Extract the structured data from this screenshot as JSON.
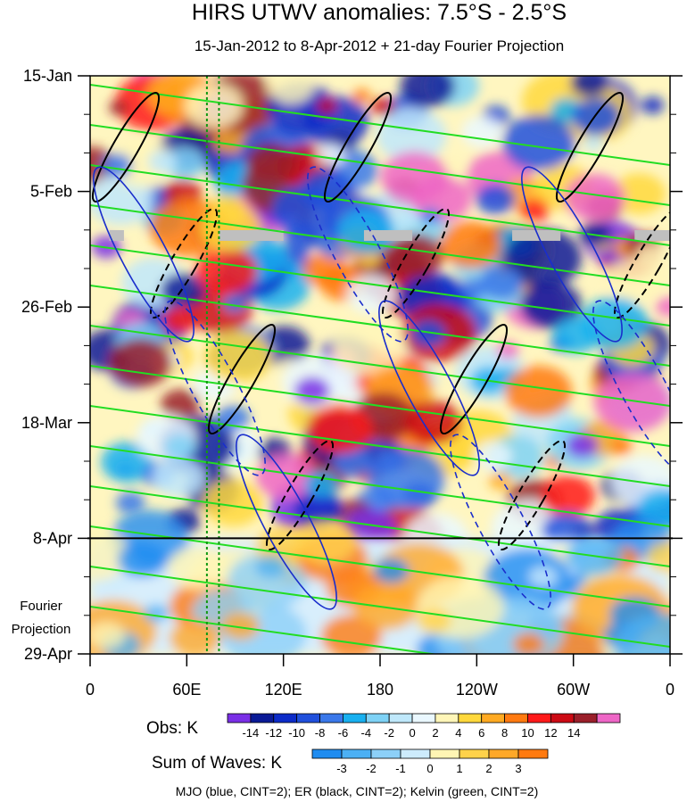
{
  "chart_data": {
    "type": "heatmap",
    "title": "HIRS UTWV anomalies: 7.5°S - 2.5°S",
    "subtitle": "15-Jan-2012 to 8-Apr-2012 + 21-day Fourier Projection",
    "x_ticks": [
      "0",
      "60E",
      "120E",
      "180",
      "120W",
      "60W",
      "0"
    ],
    "x_range_deg": [
      0,
      360
    ],
    "y_ticks": [
      "15-Jan",
      "5-Feb",
      "26-Feb",
      "18-Mar",
      "8-Apr",
      "29-Apr"
    ],
    "y_range_days": [
      0,
      105
    ],
    "observation_end_day": 84,
    "projection_label_line1": "Fourier",
    "projection_label_line2": "Projection",
    "marker_longitudes_deg": [
      72.5,
      80
    ],
    "obs_colorbar": {
      "label": "Obs: K",
      "levels": [
        "-14",
        "-12",
        "-10",
        "-8",
        "-6",
        "-4",
        "-2",
        "0",
        "2",
        "4",
        "6",
        "8",
        "10",
        "12",
        "14"
      ],
      "colors": [
        "#7a2fe6",
        "#0a1a96",
        "#0c2bc8",
        "#2050dc",
        "#3a78ea",
        "#18b0f0",
        "#7ed2f6",
        "#bfe8fb",
        "#eaf8ff",
        "#fff6b8",
        "#ffd83c",
        "#ffaa22",
        "#ff7a10",
        "#ff1a1a",
        "#cc0a14",
        "#9a1f2a",
        "#ee66c6"
      ]
    },
    "wave_colorbar": {
      "label": "Sum of Waves: K",
      "levels": [
        "-3",
        "-2",
        "-1",
        "0",
        "1",
        "2",
        "3"
      ],
      "colors": [
        "#1f8cf0",
        "#4cb0f4",
        "#8cd0f8",
        "#cdebfc",
        "#fff5b4",
        "#ffd24a",
        "#ffa828",
        "#ff7a10"
      ]
    },
    "contour_legend": "MJO (blue, CINT=2); ER (black, CINT=2); Kelvin (green, CINT=2)",
    "missing_data_days": [
      [
        29,
        12,
        9
      ],
      [
        29,
        80,
        40
      ],
      [
        29,
        170,
        30
      ],
      [
        29,
        262,
        30
      ],
      [
        29,
        338,
        22
      ]
    ]
  }
}
